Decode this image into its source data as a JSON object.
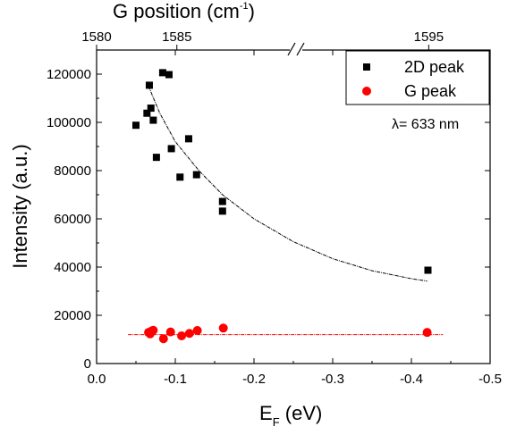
{
  "chart_data": {
    "type": "scatter",
    "xlabel_main": "E",
    "xlabel_sub": "F",
    "xlabel_unit": " (eV)",
    "ylabel": "Intensity (a.u.)",
    "top_axis_title_main": "G position (cm",
    "top_axis_title_sup": "-1",
    "top_axis_title_end": ")",
    "xlim": [
      0.0,
      -0.5
    ],
    "ylim": [
      0,
      130000
    ],
    "x_ticks": [
      0.0,
      -0.1,
      -0.2,
      -0.3,
      -0.4,
      -0.5
    ],
    "x_tick_labels": [
      "0.0",
      "-0.1",
      "-0.2",
      "-0.3",
      "-0.4",
      "-0.5"
    ],
    "y_ticks": [
      0,
      20000,
      40000,
      60000,
      80000,
      100000,
      120000
    ],
    "y_tick_labels": [
      "0",
      "20000",
      "40000",
      "60000",
      "80000",
      "100000",
      "120000"
    ],
    "top_ticks": [
      {
        "label": "1580",
        "at_ef": -0.0
      },
      {
        "label": "1585",
        "at_ef": -0.102
      },
      {
        "label": "1595",
        "at_ef": -0.422
      }
    ],
    "series": [
      {
        "name": "2D peak",
        "marker": "square",
        "color": "#000000",
        "points": [
          [
            -0.05,
            98800
          ],
          [
            -0.064,
            103800
          ],
          [
            -0.067,
            115400
          ],
          [
            -0.069,
            105900
          ],
          [
            -0.072,
            100900
          ],
          [
            -0.076,
            85500
          ],
          [
            -0.084,
            120600
          ],
          [
            -0.092,
            119800
          ],
          [
            -0.095,
            89100
          ],
          [
            -0.106,
            77300
          ],
          [
            -0.117,
            93200
          ],
          [
            -0.127,
            78300
          ],
          [
            -0.16,
            67200
          ],
          [
            -0.16,
            63200
          ],
          [
            -0.421,
            38700
          ]
        ],
        "fit": {
          "style": "dashed",
          "x_range": [
            -0.066,
            -0.42
          ],
          "values": [
            [
              -0.066,
              115000
            ],
            [
              -0.08,
              104000
            ],
            [
              -0.1,
              92000
            ],
            [
              -0.13,
              80000
            ],
            [
              -0.16,
              70000
            ],
            [
              -0.2,
              60000
            ],
            [
              -0.25,
              50500
            ],
            [
              -0.3,
              43500
            ],
            [
              -0.35,
              38500
            ],
            [
              -0.4,
              35200
            ],
            [
              -0.42,
              34200
            ]
          ]
        }
      },
      {
        "name": "G peak",
        "marker": "circle",
        "color": "#ff0000",
        "points": [
          [
            -0.066,
            12900
          ],
          [
            -0.068,
            12300
          ],
          [
            -0.07,
            13500
          ],
          [
            -0.072,
            13800
          ],
          [
            -0.085,
            10300
          ],
          [
            -0.094,
            13100
          ],
          [
            -0.108,
            11500
          ],
          [
            -0.118,
            12500
          ],
          [
            -0.128,
            13700
          ],
          [
            -0.161,
            14700
          ],
          [
            -0.42,
            12900
          ]
        ],
        "fit": {
          "style": "dashed",
          "values": [
            [
              -0.04,
              12000
            ],
            [
              -0.44,
              12000
            ]
          ]
        }
      }
    ],
    "annotation": "λ= 633 nm",
    "legend_position": "top-right",
    "grid": false,
    "axis_break": "top-axis"
  }
}
